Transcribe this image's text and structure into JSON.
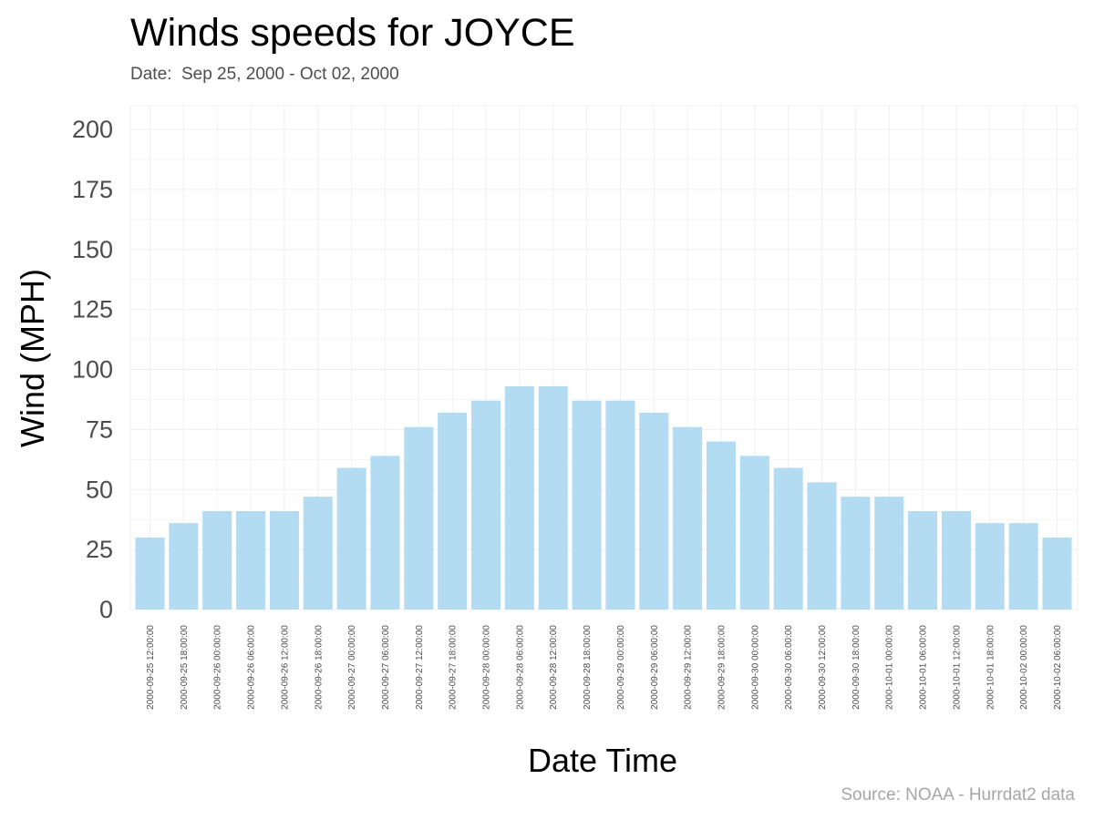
{
  "header": {
    "title": "Winds speeds for JOYCE",
    "subtitle": "Date:  Sep 25, 2000 - Oct 02, 2000"
  },
  "footer": {
    "caption": "Source: NOAA - Hurrdat2 data"
  },
  "colors": {
    "bar_fill": "#b3dcf3",
    "grid": "#efefef",
    "background": "#ffffff"
  },
  "chart_data": {
    "type": "bar",
    "xlabel": "Date Time",
    "ylabel": "Wind (MPH)",
    "ylim": [
      0,
      205
    ],
    "yticks": [
      0,
      25,
      50,
      75,
      100,
      125,
      150,
      175,
      200
    ],
    "grid": true,
    "categories": [
      "2000-09-25 12:00:00",
      "2000-09-25 18:00:00",
      "2000-09-26 00:00:00",
      "2000-09-26 06:00:00",
      "2000-09-26 12:00:00",
      "2000-09-26 18:00:00",
      "2000-09-27 00:00:00",
      "2000-09-27 06:00:00",
      "2000-09-27 12:00:00",
      "2000-09-27 18:00:00",
      "2000-09-28 00:00:00",
      "2000-09-28 06:00:00",
      "2000-09-28 12:00:00",
      "2000-09-28 18:00:00",
      "2000-09-29 00:00:00",
      "2000-09-29 06:00:00",
      "2000-09-29 12:00:00",
      "2000-09-29 18:00:00",
      "2000-09-30 00:00:00",
      "2000-09-30 06:00:00",
      "2000-09-30 12:00:00",
      "2000-09-30 18:00:00",
      "2000-10-01 00:00:00",
      "2000-10-01 06:00:00",
      "2000-10-01 12:00:00",
      "2000-10-01 18:00:00",
      "2000-10-02 00:00:00",
      "2000-10-02 06:00:00"
    ],
    "values": [
      30,
      36,
      41,
      41,
      41,
      47,
      59,
      64,
      76,
      82,
      87,
      93,
      93,
      87,
      87,
      82,
      76,
      70,
      64,
      59,
      53,
      47,
      47,
      41,
      41,
      36,
      36,
      30
    ]
  }
}
